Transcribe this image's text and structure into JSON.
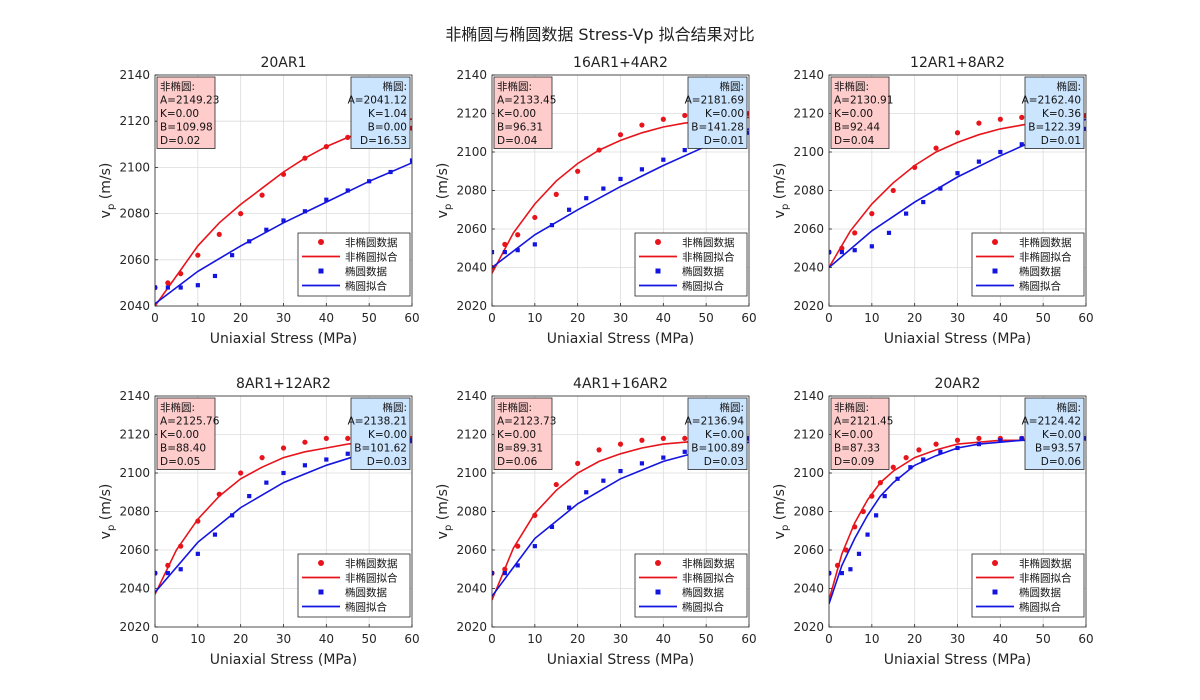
{
  "figure": {
    "title": "非椭圆与椭圆数据 Stress-Vp 拟合结果对比"
  },
  "legend_labels": [
    "非椭圆数据",
    "非椭圆拟合",
    "椭圆数据",
    "椭圆拟合"
  ],
  "colors": {
    "nonelliptic": "#e8141b",
    "elliptic": "#1414e0",
    "nonelliptic_box_fill": "#ffcccc",
    "elliptic_box_fill": "#cce5ff"
  },
  "chart_data": [
    {
      "type": "scatter",
      "title": "20AR1",
      "xlabel": "Uniaxial Stress (MPa)",
      "ylabel": "v_p (m/s)",
      "xlim": [
        0,
        60
      ],
      "ylim": [
        2040,
        2140
      ],
      "xticks": [
        0,
        10,
        20,
        30,
        40,
        50,
        60
      ],
      "yticks": [
        2040,
        2060,
        2080,
        2100,
        2120,
        2140
      ],
      "grid": true,
      "legend_position": "bottom-right",
      "params_nonelliptic": [
        "非椭圆:",
        "A=2149.23",
        "K=0.00",
        "B=109.98",
        "D=0.02"
      ],
      "params_elliptic": [
        "椭圆:",
        "A=2041.12",
        "K=1.04",
        "B=0.00",
        "D=16.53"
      ],
      "series": [
        {
          "name": "非椭圆数据",
          "kind": "points",
          "marker": "circle",
          "x": [
            0,
            3,
            6,
            10,
            15,
            20,
            25,
            30,
            35,
            40,
            45,
            50,
            55,
            60
          ],
          "y": [
            2048,
            2050,
            2054,
            2062,
            2071,
            2080,
            2088,
            2097,
            2104,
            2109,
            2113,
            2116,
            2118,
            2117
          ]
        },
        {
          "name": "非椭圆拟合",
          "kind": "line",
          "x": [
            0,
            5,
            10,
            15,
            20,
            25,
            30,
            35,
            40,
            45,
            50,
            55,
            60
          ],
          "y": [
            2040,
            2053,
            2066,
            2076,
            2084,
            2091,
            2098,
            2104,
            2109,
            2113,
            2116,
            2119,
            2121
          ]
        },
        {
          "name": "椭圆数据",
          "kind": "points",
          "marker": "square",
          "x": [
            0,
            3,
            6,
            10,
            14,
            18,
            22,
            26,
            30,
            35,
            40,
            45,
            50,
            55,
            60
          ],
          "y": [
            2048,
            2048,
            2048,
            2049,
            2053,
            2062,
            2068,
            2073,
            2077,
            2081,
            2086,
            2090,
            2094,
            2098,
            2103
          ]
        },
        {
          "name": "椭圆拟合",
          "kind": "line",
          "x": [
            0,
            10,
            20,
            30,
            40,
            50,
            60
          ],
          "y": [
            2041,
            2055,
            2066,
            2076,
            2085,
            2094,
            2102
          ]
        }
      ]
    },
    {
      "type": "scatter",
      "title": "16AR1+4AR2",
      "xlabel": "Uniaxial Stress (MPa)",
      "ylabel": "v_p (m/s)",
      "xlim": [
        0,
        60
      ],
      "ylim": [
        2020,
        2140
      ],
      "xticks": [
        0,
        10,
        20,
        30,
        40,
        50,
        60
      ],
      "yticks": [
        2020,
        2040,
        2060,
        2080,
        2100,
        2120,
        2140
      ],
      "grid": true,
      "legend_position": "bottom-right",
      "params_nonelliptic": [
        "非椭圆:",
        "A=2133.45",
        "K=0.00",
        "B=96.31",
        "D=0.04"
      ],
      "params_elliptic": [
        "椭圆:",
        "A=2181.69",
        "K=0.00",
        "B=141.28",
        "D=0.01"
      ],
      "series": [
        {
          "name": "非椭圆数据",
          "kind": "points",
          "marker": "circle",
          "x": [
            0,
            3,
            6,
            10,
            15,
            20,
            25,
            30,
            35,
            40,
            45,
            50,
            55,
            60
          ],
          "y": [
            2040,
            2052,
            2057,
            2066,
            2078,
            2090,
            2101,
            2109,
            2114,
            2117,
            2119,
            2120,
            2120,
            2120
          ]
        },
        {
          "name": "非椭圆拟合",
          "kind": "line",
          "x": [
            0,
            5,
            10,
            15,
            20,
            25,
            30,
            35,
            40,
            45,
            50,
            55,
            60
          ],
          "y": [
            2037,
            2058,
            2073,
            2085,
            2094,
            2101,
            2106,
            2110,
            2113,
            2115,
            2116,
            2117,
            2118
          ]
        },
        {
          "name": "椭圆数据",
          "kind": "points",
          "marker": "square",
          "x": [
            0,
            3,
            6,
            10,
            14,
            18,
            22,
            26,
            30,
            35,
            40,
            45,
            50,
            55,
            60
          ],
          "y": [
            2048,
            2048,
            2049,
            2052,
            2062,
            2070,
            2076,
            2081,
            2086,
            2091,
            2096,
            2101,
            2104,
            2108,
            2110
          ]
        },
        {
          "name": "椭圆拟合",
          "kind": "line",
          "x": [
            0,
            10,
            20,
            30,
            40,
            50,
            60
          ],
          "y": [
            2040,
            2057,
            2070,
            2082,
            2093,
            2103,
            2112
          ]
        }
      ]
    },
    {
      "type": "scatter",
      "title": "12AR1+8AR2",
      "xlabel": "Uniaxial Stress (MPa)",
      "ylabel": "v_p (m/s)",
      "xlim": [
        0,
        60
      ],
      "ylim": [
        2020,
        2140
      ],
      "xticks": [
        0,
        10,
        20,
        30,
        40,
        50,
        60
      ],
      "yticks": [
        2020,
        2040,
        2060,
        2080,
        2100,
        2120,
        2140
      ],
      "grid": true,
      "legend_position": "bottom-right",
      "params_nonelliptic": [
        "非椭圆:",
        "A=2130.91",
        "K=0.00",
        "B=92.44",
        "D=0.04"
      ],
      "params_elliptic": [
        "椭圆:",
        "A=2162.40",
        "K=0.36",
        "B=122.39",
        "D=0.01"
      ],
      "series": [
        {
          "name": "非椭圆数据",
          "kind": "points",
          "marker": "circle",
          "x": [
            0,
            3,
            6,
            10,
            15,
            20,
            25,
            30,
            35,
            40,
            45,
            50,
            55,
            60
          ],
          "y": [
            2048,
            2050,
            2058,
            2068,
            2080,
            2092,
            2102,
            2110,
            2115,
            2117,
            2118,
            2119,
            2119,
            2119
          ]
        },
        {
          "name": "非椭圆拟合",
          "kind": "line",
          "x": [
            0,
            5,
            10,
            15,
            20,
            25,
            30,
            35,
            40,
            45,
            50,
            55,
            60
          ],
          "y": [
            2040,
            2059,
            2073,
            2084,
            2093,
            2100,
            2105,
            2109,
            2112,
            2114,
            2116,
            2117,
            2118
          ]
        },
        {
          "name": "椭圆数据",
          "kind": "points",
          "marker": "square",
          "x": [
            0,
            3,
            6,
            10,
            14,
            18,
            22,
            26,
            30,
            35,
            40,
            45,
            50,
            55,
            60
          ],
          "y": [
            2048,
            2048,
            2049,
            2051,
            2058,
            2068,
            2074,
            2081,
            2089,
            2095,
            2100,
            2104,
            2107,
            2110,
            2112
          ]
        },
        {
          "name": "椭圆拟合",
          "kind": "line",
          "x": [
            0,
            10,
            20,
            30,
            40,
            50,
            60
          ],
          "y": [
            2040,
            2059,
            2074,
            2087,
            2098,
            2108,
            2117
          ]
        }
      ]
    },
    {
      "type": "scatter",
      "title": "8AR1+12AR2",
      "xlabel": "Uniaxial Stress (MPa)",
      "ylabel": "v_p (m/s)",
      "xlim": [
        0,
        60
      ],
      "ylim": [
        2020,
        2140
      ],
      "xticks": [
        0,
        10,
        20,
        30,
        40,
        50,
        60
      ],
      "yticks": [
        2020,
        2040,
        2060,
        2080,
        2100,
        2120,
        2140
      ],
      "grid": true,
      "legend_position": "bottom-right",
      "params_nonelliptic": [
        "非椭圆:",
        "A=2125.76",
        "K=0.00",
        "B=88.40",
        "D=0.05"
      ],
      "params_elliptic": [
        "椭圆:",
        "A=2138.21",
        "K=0.00",
        "B=101.62",
        "D=0.03"
      ],
      "series": [
        {
          "name": "非椭圆数据",
          "kind": "points",
          "marker": "circle",
          "x": [
            0,
            3,
            6,
            10,
            15,
            20,
            25,
            30,
            35,
            40,
            45,
            50,
            55,
            60
          ],
          "y": [
            2048,
            2052,
            2062,
            2075,
            2089,
            2100,
            2108,
            2113,
            2116,
            2118,
            2118,
            2118,
            2118,
            2118
          ]
        },
        {
          "name": "非椭圆拟合",
          "kind": "line",
          "x": [
            0,
            5,
            10,
            15,
            20,
            25,
            30,
            35,
            40,
            45,
            50,
            55,
            60
          ],
          "y": [
            2037,
            2060,
            2076,
            2088,
            2097,
            2103,
            2108,
            2111,
            2113,
            2115,
            2116,
            2117,
            2117
          ]
        },
        {
          "name": "椭圆数据",
          "kind": "points",
          "marker": "square",
          "x": [
            0,
            3,
            6,
            10,
            14,
            18,
            22,
            26,
            30,
            35,
            40,
            45,
            50,
            55,
            60
          ],
          "y": [
            2048,
            2048,
            2050,
            2058,
            2068,
            2078,
            2088,
            2095,
            2100,
            2104,
            2107,
            2110,
            2113,
            2116,
            2117
          ]
        },
        {
          "name": "椭圆拟合",
          "kind": "line",
          "x": [
            0,
            10,
            20,
            30,
            40,
            50,
            60
          ],
          "y": [
            2038,
            2064,
            2082,
            2095,
            2104,
            2111,
            2116
          ]
        }
      ]
    },
    {
      "type": "scatter",
      "title": "4AR1+16AR2",
      "xlabel": "Uniaxial Stress (MPa)",
      "ylabel": "v_p (m/s)",
      "xlim": [
        0,
        60
      ],
      "ylim": [
        2020,
        2140
      ],
      "xticks": [
        0,
        10,
        20,
        30,
        40,
        50,
        60
      ],
      "yticks": [
        2020,
        2040,
        2060,
        2080,
        2100,
        2120,
        2140
      ],
      "grid": true,
      "legend_position": "bottom-right",
      "params_nonelliptic": [
        "非椭圆:",
        "A=2123.73",
        "K=0.00",
        "B=89.31",
        "D=0.06"
      ],
      "params_elliptic": [
        "椭圆:",
        "A=2136.94",
        "K=0.00",
        "B=100.89",
        "D=0.03"
      ],
      "series": [
        {
          "name": "非椭圆数据",
          "kind": "points",
          "marker": "circle",
          "x": [
            0,
            3,
            6,
            10,
            15,
            20,
            25,
            30,
            35,
            40,
            45,
            50,
            55,
            60
          ],
          "y": [
            2048,
            2050,
            2062,
            2078,
            2094,
            2105,
            2112,
            2115,
            2117,
            2118,
            2118,
            2118,
            2118,
            2118
          ]
        },
        {
          "name": "非椭圆拟合",
          "kind": "line",
          "x": [
            0,
            5,
            10,
            15,
            20,
            25,
            30,
            35,
            40,
            45,
            50,
            55,
            60
          ],
          "y": [
            2034,
            2061,
            2079,
            2091,
            2100,
            2106,
            2110,
            2113,
            2115,
            2116,
            2117,
            2117,
            2118
          ]
        },
        {
          "name": "椭圆数据",
          "kind": "points",
          "marker": "square",
          "x": [
            0,
            3,
            6,
            10,
            14,
            18,
            22,
            26,
            30,
            35,
            40,
            45,
            50,
            55,
            60
          ],
          "y": [
            2048,
            2048,
            2052,
            2062,
            2072,
            2082,
            2090,
            2096,
            2101,
            2105,
            2108,
            2111,
            2114,
            2116,
            2118
          ]
        },
        {
          "name": "椭圆拟合",
          "kind": "line",
          "x": [
            0,
            10,
            20,
            30,
            40,
            50,
            60
          ],
          "y": [
            2036,
            2066,
            2084,
            2097,
            2106,
            2112,
            2116
          ]
        }
      ]
    },
    {
      "type": "scatter",
      "title": "20AR2",
      "xlabel": "Uniaxial Stress (MPa)",
      "ylabel": "v_p (m/s)",
      "xlim": [
        0,
        60
      ],
      "ylim": [
        2020,
        2140
      ],
      "xticks": [
        0,
        10,
        20,
        30,
        40,
        50,
        60
      ],
      "yticks": [
        2020,
        2040,
        2060,
        2080,
        2100,
        2120,
        2140
      ],
      "grid": true,
      "legend_position": "bottom-right",
      "params_nonelliptic": [
        "非椭圆:",
        "A=2121.45",
        "K=0.00",
        "B=87.33",
        "D=0.09"
      ],
      "params_elliptic": [
        "椭圆:",
        "A=2124.42",
        "K=0.00",
        "B=93.57",
        "D=0.06"
      ],
      "series": [
        {
          "name": "非椭圆数据",
          "kind": "points",
          "marker": "circle",
          "x": [
            0,
            2,
            4,
            6,
            8,
            10,
            12,
            15,
            18,
            21,
            25,
            30,
            35,
            40,
            45,
            50,
            55,
            60
          ],
          "y": [
            2048,
            2052,
            2060,
            2072,
            2080,
            2088,
            2095,
            2103,
            2108,
            2112,
            2115,
            2117,
            2118,
            2118,
            2118,
            2118,
            2118,
            2118
          ]
        },
        {
          "name": "非椭圆拟合",
          "kind": "line",
          "x": [
            0,
            3,
            6,
            9,
            12,
            15,
            20,
            25,
            30,
            35,
            40,
            45,
            50,
            55,
            60
          ],
          "y": [
            2034,
            2058,
            2074,
            2086,
            2095,
            2101,
            2108,
            2112,
            2115,
            2116,
            2117,
            2117,
            2118,
            2118,
            2118
          ]
        },
        {
          "name": "椭圆数据",
          "kind": "points",
          "marker": "square",
          "x": [
            0,
            3,
            5,
            7,
            9,
            11,
            13,
            16,
            19,
            22,
            26,
            30,
            35,
            40,
            45,
            50,
            55,
            60
          ],
          "y": [
            2048,
            2048,
            2050,
            2058,
            2068,
            2078,
            2088,
            2097,
            2103,
            2107,
            2111,
            2113,
            2115,
            2117,
            2118,
            2118,
            2118,
            2118
          ]
        },
        {
          "name": "椭圆拟合",
          "kind": "line",
          "x": [
            0,
            3,
            6,
            9,
            12,
            15,
            20,
            25,
            30,
            35,
            40,
            45,
            50,
            55,
            60
          ],
          "y": [
            2032,
            2052,
            2066,
            2078,
            2088,
            2095,
            2104,
            2109,
            2113,
            2115,
            2116,
            2117,
            2117,
            2118,
            2118
          ]
        }
      ]
    }
  ]
}
